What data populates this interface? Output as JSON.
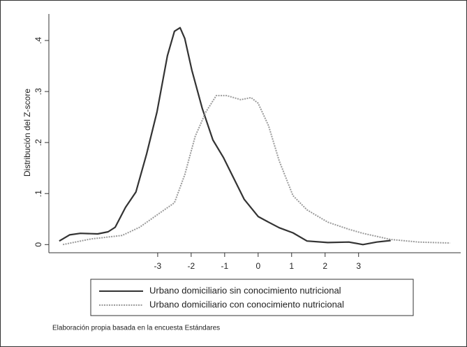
{
  "chart_data": {
    "type": "line",
    "y_label": "Distribución del Z-score",
    "note": "Elaboración propia basada en la encuesta Estándares",
    "xlim": [
      -6.25,
      6.05
    ],
    "ylim": [
      -0.016,
      0.452
    ],
    "xticks": [
      -3,
      -2,
      -1,
      0,
      1,
      2,
      3
    ],
    "yticks": [
      0,
      {
        "value": 0.1,
        "label": ".1"
      },
      {
        "value": 0.2,
        "label": ".2"
      },
      {
        "value": 0.3,
        "label": ".3"
      },
      {
        "value": 0.4,
        "label": ".4"
      }
    ],
    "grid": false,
    "legend": "bottom",
    "series": [
      {
        "name": "Urbano domiciliario sin conocimiento nutricional",
        "color": "#333333",
        "line_style": "solid",
        "x": [
          -5.94,
          -5.63,
          -5.31,
          -4.79,
          -4.48,
          -4.27,
          -3.96,
          -3.65,
          -3.33,
          -3.02,
          -2.71,
          -2.5,
          -2.33,
          -2.19,
          -1.98,
          -1.67,
          -1.35,
          -1.04,
          -0.73,
          -0.42,
          0,
          0.31,
          0.63,
          1.04,
          1.46,
          2.08,
          2.71,
          3.13,
          3.54,
          3.96
        ],
        "values": [
          0.007,
          0.019,
          0.022,
          0.021,
          0.025,
          0.034,
          0.073,
          0.103,
          0.178,
          0.26,
          0.37,
          0.418,
          0.425,
          0.404,
          0.342,
          0.267,
          0.205,
          0.171,
          0.13,
          0.089,
          0.055,
          0.044,
          0.033,
          0.023,
          0.007,
          0.004,
          0.005,
          0,
          0.005,
          0.008
        ]
      },
      {
        "name": "Urbano domiciliario con conocimiento nutricional",
        "color": "#999999",
        "line_style": "dotted",
        "x": [
          -5.83,
          -5,
          -4.06,
          -3.54,
          -3.02,
          -2.5,
          -2.19,
          -1.88,
          -1.56,
          -1.25,
          -0.94,
          -0.73,
          -0.52,
          -0.21,
          0,
          0.31,
          0.63,
          1.04,
          1.46,
          2.08,
          2.71,
          3.13,
          3.96,
          4.79,
          5.73
        ],
        "values": [
          0,
          0.011,
          0.018,
          0.034,
          0.058,
          0.082,
          0.137,
          0.212,
          0.26,
          0.292,
          0.292,
          0.288,
          0.284,
          0.288,
          0.277,
          0.233,
          0.164,
          0.096,
          0.068,
          0.044,
          0.03,
          0.022,
          0.01,
          0.005,
          0.003
        ]
      }
    ]
  }
}
